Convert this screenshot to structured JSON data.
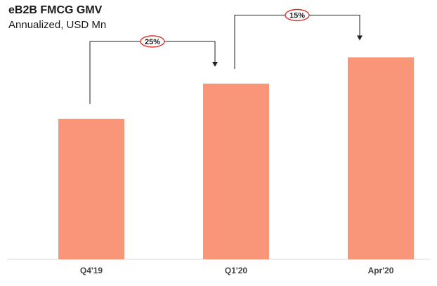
{
  "chart_data": {
    "type": "bar",
    "title": "eB2B FMCG GMV",
    "subtitle": "Annualized, USD Mn",
    "categories": [
      "Q4'19",
      "Q1'20",
      "Apr'20"
    ],
    "values": [
      100,
      125,
      143.75
    ],
    "ylim": [
      0,
      150
    ],
    "grid": false,
    "legend": "none",
    "bar_color": "#F9967A",
    "badge_color": "#D9302B",
    "annotations": [
      {
        "from": "Q4'19",
        "to": "Q1'20",
        "label": "25%"
      },
      {
        "from": "Q1'20",
        "to": "Apr'20",
        "label": "15%"
      }
    ]
  }
}
